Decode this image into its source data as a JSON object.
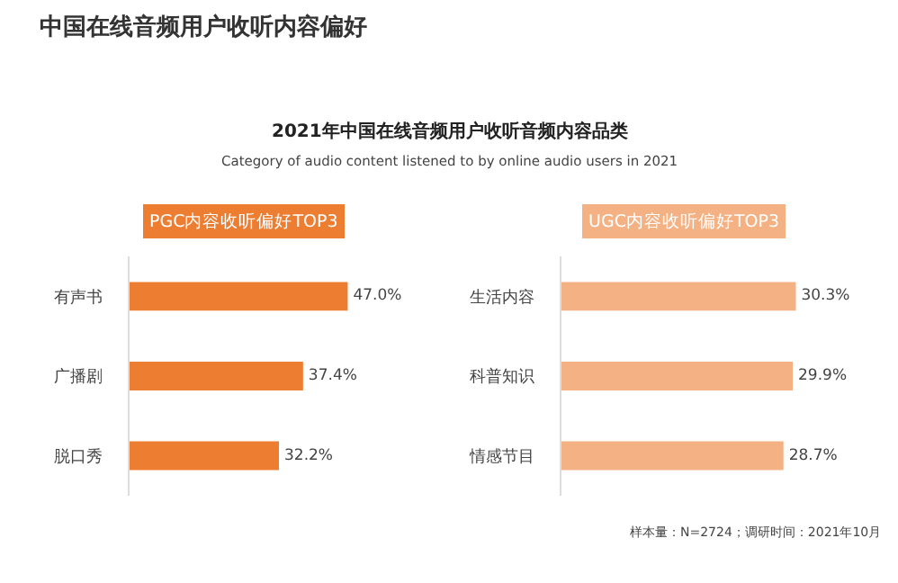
{
  "chart_data": [
    {
      "type": "other",
      "title": "中国在线音频用户收听内容偏好",
      "subtitle": "2021年中国在线音频用户收听音频内容品类",
      "annotations": [
        "Category of audio content listened to by online audio users in 2021",
        "样本量：N=2724；调研时间：2021年10月"
      ]
    },
    {
      "type": "bar",
      "orientation": "horizontal",
      "title": "PGC内容收听偏好TOP3",
      "categories": [
        "有声书",
        "广播剧",
        "脱口秀"
      ],
      "values": [
        47.0,
        37.4,
        32.2
      ],
      "value_labels": [
        "47.0%",
        "37.4%",
        "32.2%"
      ],
      "color": "#ed7d31"
    },
    {
      "type": "bar",
      "orientation": "horizontal",
      "title": "UGC内容收听偏好TOP3",
      "categories": [
        "生活内容",
        "科普知识",
        "情感节目"
      ],
      "values": [
        30.3,
        29.9,
        28.7
      ],
      "value_labels": [
        "30.3%",
        "29.9%",
        "28.7%"
      ],
      "color": "#f4b183"
    }
  ]
}
